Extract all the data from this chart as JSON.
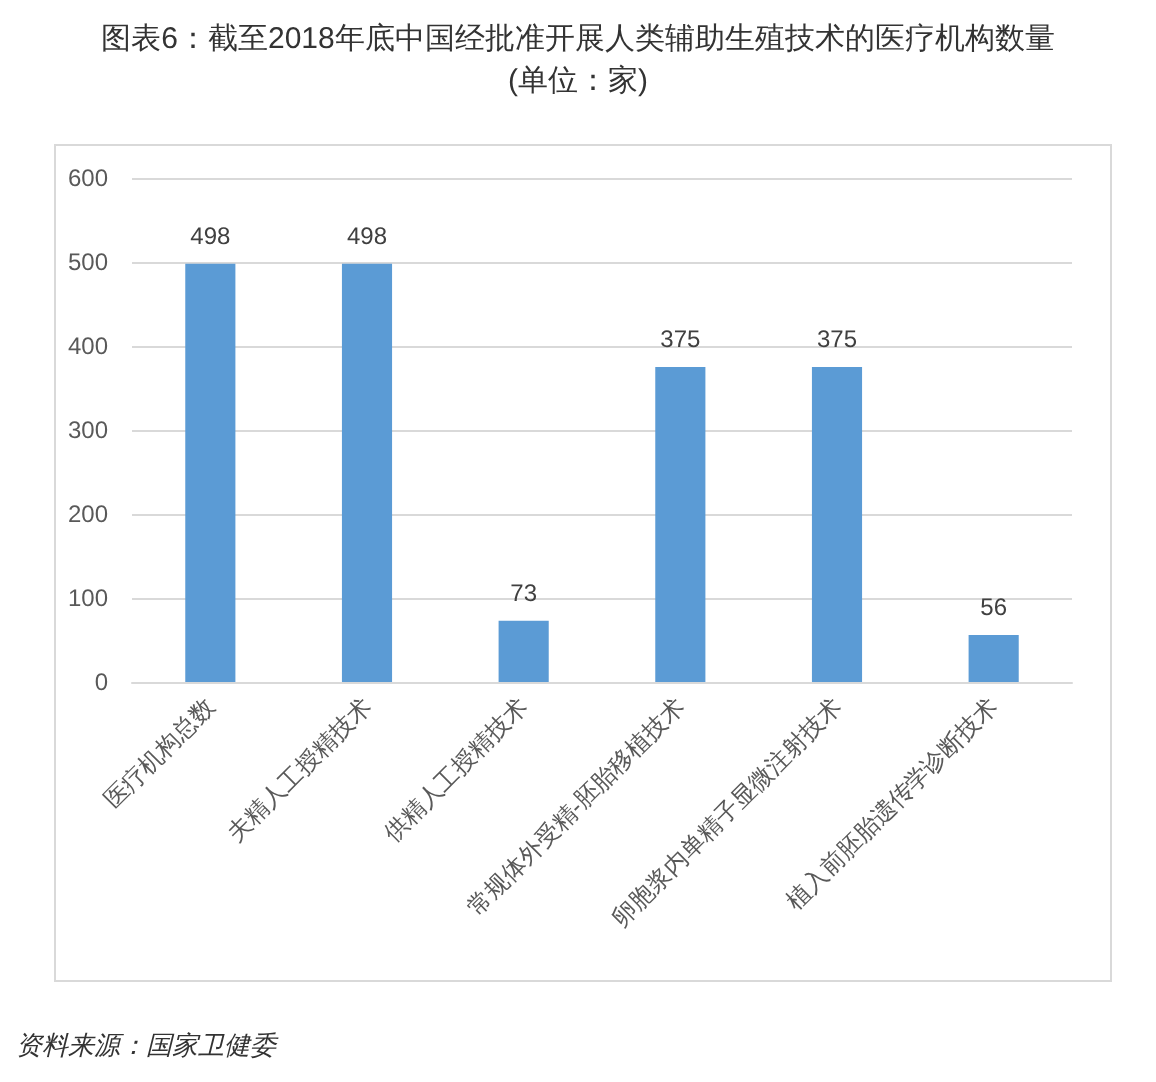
{
  "chart_data": {
    "type": "bar",
    "title": "图表6：截至2018年底中国经批准开展人类辅助生殖技术的医疗机构数量",
    "subtitle": "(单位：家)",
    "categories": [
      "医疗机构总数",
      "夫精人工授精技术",
      "供精人工授精技术",
      "常规体外受精-胚胎移植技术",
      "卵胞浆内单精子显微注射技术",
      "植入前胚胎遗传学诊断技术"
    ],
    "values": [
      498,
      498,
      73,
      375,
      375,
      56
    ],
    "color": "#5b9bd5",
    "ylim": [
      0,
      600
    ],
    "yticks": [
      0,
      100,
      200,
      300,
      400,
      500,
      600
    ],
    "grid": "y",
    "data_labels": true,
    "annotations": [
      "资料来源：国家卫健委"
    ]
  }
}
